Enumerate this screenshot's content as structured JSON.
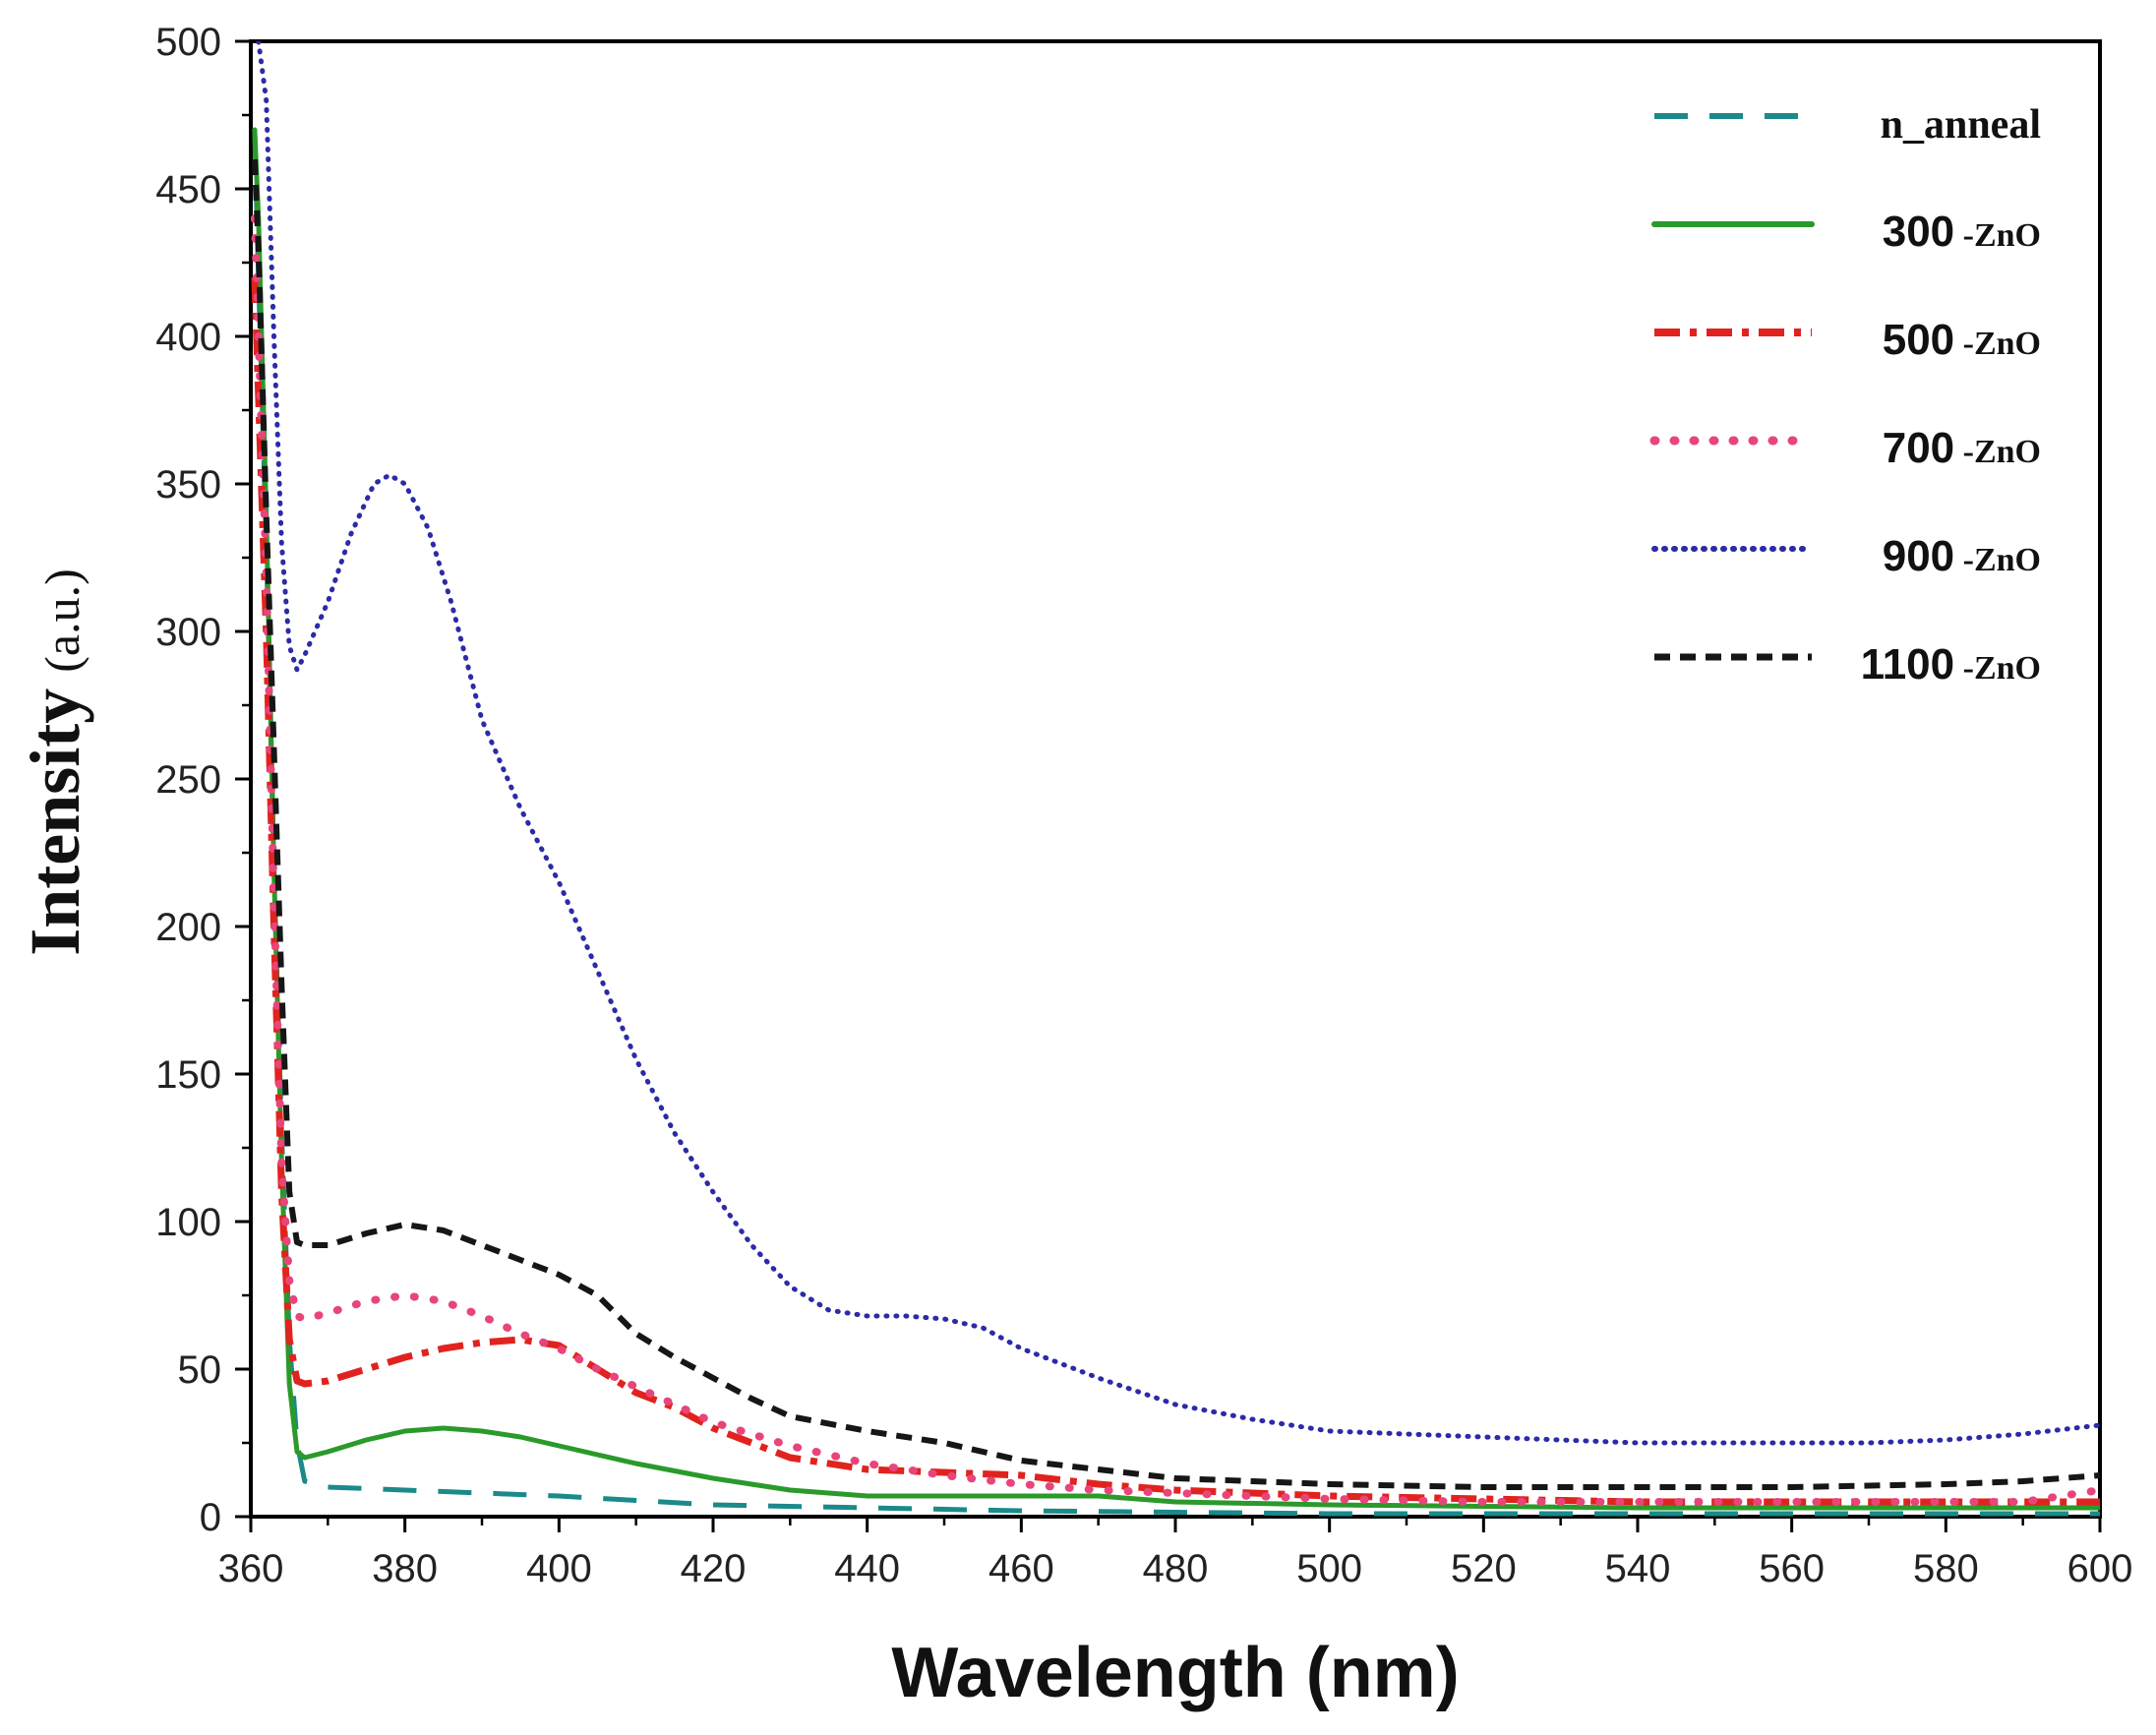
{
  "chart_data": {
    "type": "line",
    "title": "",
    "xlabel": "Wavelength (nm)",
    "ylabel": {
      "main": "Intensity",
      "unit": "(a.u.)"
    },
    "xlim": [
      360,
      600
    ],
    "ylim": [
      0,
      500
    ],
    "xticks": [
      360,
      380,
      400,
      420,
      440,
      460,
      480,
      500,
      520,
      540,
      560,
      580,
      600
    ],
    "yticks": [
      0,
      50,
      100,
      150,
      200,
      250,
      300,
      350,
      400,
      450,
      500
    ],
    "legend_position": "top-right",
    "series": [
      {
        "name": "n_anneal",
        "legend_main": "n_anneal",
        "legend_suffix": "",
        "color": "#1a8a8a",
        "dash": "dash-long",
        "points": [
          [
            360.5,
            470
          ],
          [
            361,
            420
          ],
          [
            362,
            330
          ],
          [
            363,
            220
          ],
          [
            364,
            130
          ],
          [
            365,
            60
          ],
          [
            366,
            25
          ],
          [
            367,
            12
          ],
          [
            370,
            10
          ],
          [
            380,
            9
          ],
          [
            400,
            7
          ],
          [
            420,
            4
          ],
          [
            440,
            3
          ],
          [
            460,
            2
          ],
          [
            480,
            1.5
          ],
          [
            500,
            1
          ],
          [
            520,
            1
          ],
          [
            540,
            1
          ],
          [
            560,
            1
          ],
          [
            580,
            1
          ],
          [
            600,
            1
          ]
        ]
      },
      {
        "name": "300 -ZnO",
        "legend_main": "300",
        "legend_suffix": " -ZnO",
        "color": "#2a9a2a",
        "dash": "solid",
        "points": [
          [
            360.5,
            470
          ],
          [
            361,
            440
          ],
          [
            362,
            340
          ],
          [
            363,
            220
          ],
          [
            364,
            120
          ],
          [
            365,
            45
          ],
          [
            366,
            22
          ],
          [
            367,
            20
          ],
          [
            370,
            22
          ],
          [
            375,
            26
          ],
          [
            380,
            29
          ],
          [
            385,
            30
          ],
          [
            390,
            29
          ],
          [
            395,
            27
          ],
          [
            400,
            24
          ],
          [
            410,
            18
          ],
          [
            420,
            13
          ],
          [
            430,
            9
          ],
          [
            440,
            7
          ],
          [
            450,
            7
          ],
          [
            460,
            7
          ],
          [
            470,
            7
          ],
          [
            480,
            5
          ],
          [
            500,
            4
          ],
          [
            520,
            3.5
          ],
          [
            540,
            3
          ],
          [
            560,
            3
          ],
          [
            580,
            3
          ],
          [
            600,
            3
          ]
        ]
      },
      {
        "name": "500 -ZnO",
        "legend_main": "500",
        "legend_suffix": " -ZnO",
        "color": "#e0231f",
        "dash": "dashdot",
        "points": [
          [
            360.5,
            420
          ],
          [
            361,
            380
          ],
          [
            362,
            300
          ],
          [
            363,
            200
          ],
          [
            364,
            110
          ],
          [
            365,
            60
          ],
          [
            366,
            46
          ],
          [
            367,
            45
          ],
          [
            370,
            46
          ],
          [
            375,
            50
          ],
          [
            380,
            54
          ],
          [
            385,
            57
          ],
          [
            390,
            59
          ],
          [
            395,
            60
          ],
          [
            400,
            58
          ],
          [
            405,
            50
          ],
          [
            410,
            42
          ],
          [
            415,
            37
          ],
          [
            420,
            30
          ],
          [
            430,
            20
          ],
          [
            440,
            16
          ],
          [
            450,
            15
          ],
          [
            460,
            14
          ],
          [
            470,
            11
          ],
          [
            480,
            9
          ],
          [
            500,
            7
          ],
          [
            520,
            6
          ],
          [
            540,
            5
          ],
          [
            560,
            5
          ],
          [
            580,
            5
          ],
          [
            600,
            5
          ]
        ]
      },
      {
        "name": "700 -ZnO",
        "legend_main": "700",
        "legend_suffix": " -ZnO",
        "color": "#e8457a",
        "dash": "dot-sparse",
        "points": [
          [
            360.5,
            440
          ],
          [
            361,
            400
          ],
          [
            362,
            320
          ],
          [
            363,
            210
          ],
          [
            364,
            120
          ],
          [
            365,
            80
          ],
          [
            366,
            68
          ],
          [
            367,
            67
          ],
          [
            370,
            69
          ],
          [
            375,
            73
          ],
          [
            380,
            75
          ],
          [
            385,
            73
          ],
          [
            390,
            68
          ],
          [
            395,
            62
          ],
          [
            400,
            57
          ],
          [
            405,
            50
          ],
          [
            410,
            44
          ],
          [
            415,
            38
          ],
          [
            420,
            32
          ],
          [
            430,
            24
          ],
          [
            440,
            18
          ],
          [
            450,
            14
          ],
          [
            460,
            11
          ],
          [
            470,
            9
          ],
          [
            480,
            8
          ],
          [
            500,
            6
          ],
          [
            520,
            5
          ],
          [
            540,
            5
          ],
          [
            560,
            5
          ],
          [
            580,
            5
          ],
          [
            590,
            5
          ],
          [
            600,
            9
          ]
        ]
      },
      {
        "name": "900 -ZnO",
        "legend_main": "900",
        "legend_suffix": " -ZnO",
        "color": "#2b2ba8",
        "dash": "dot-dense",
        "points": [
          [
            361,
            500
          ],
          [
            362,
            480
          ],
          [
            363,
            400
          ],
          [
            364,
            330
          ],
          [
            365,
            295
          ],
          [
            366,
            287
          ],
          [
            367,
            292
          ],
          [
            370,
            310
          ],
          [
            373,
            333
          ],
          [
            376,
            350
          ],
          [
            378,
            353
          ],
          [
            380,
            350
          ],
          [
            383,
            335
          ],
          [
            386,
            310
          ],
          [
            390,
            270
          ],
          [
            395,
            240
          ],
          [
            400,
            215
          ],
          [
            405,
            185
          ],
          [
            410,
            155
          ],
          [
            415,
            130
          ],
          [
            420,
            110
          ],
          [
            425,
            92
          ],
          [
            430,
            78
          ],
          [
            435,
            70
          ],
          [
            440,
            68
          ],
          [
            445,
            68
          ],
          [
            450,
            67
          ],
          [
            455,
            64
          ],
          [
            460,
            57
          ],
          [
            465,
            52
          ],
          [
            470,
            47
          ],
          [
            480,
            38
          ],
          [
            490,
            33
          ],
          [
            500,
            29
          ],
          [
            510,
            28
          ],
          [
            520,
            27
          ],
          [
            530,
            26
          ],
          [
            540,
            25
          ],
          [
            550,
            25
          ],
          [
            560,
            25
          ],
          [
            570,
            25
          ],
          [
            580,
            26
          ],
          [
            590,
            28
          ],
          [
            600,
            31
          ]
        ]
      },
      {
        "name": "1100 -ZnO",
        "legend_main": "1100",
        "legend_suffix": " -ZnO",
        "color": "#161616",
        "dash": "dash-short",
        "points": [
          [
            360.5,
            460
          ],
          [
            361,
            430
          ],
          [
            362,
            340
          ],
          [
            363,
            260
          ],
          [
            364,
            180
          ],
          [
            365,
            110
          ],
          [
            366,
            93
          ],
          [
            367,
            92
          ],
          [
            370,
            92
          ],
          [
            375,
            96
          ],
          [
            380,
            99
          ],
          [
            385,
            97
          ],
          [
            390,
            92
          ],
          [
            395,
            87
          ],
          [
            400,
            82
          ],
          [
            405,
            75
          ],
          [
            410,
            62
          ],
          [
            415,
            54
          ],
          [
            420,
            47
          ],
          [
            425,
            40
          ],
          [
            430,
            34
          ],
          [
            440,
            29
          ],
          [
            450,
            25
          ],
          [
            460,
            19
          ],
          [
            470,
            16
          ],
          [
            480,
            13
          ],
          [
            490,
            12
          ],
          [
            500,
            11
          ],
          [
            520,
            10
          ],
          [
            540,
            10
          ],
          [
            560,
            10
          ],
          [
            580,
            11
          ],
          [
            590,
            12
          ],
          [
            600,
            14
          ]
        ]
      }
    ]
  }
}
